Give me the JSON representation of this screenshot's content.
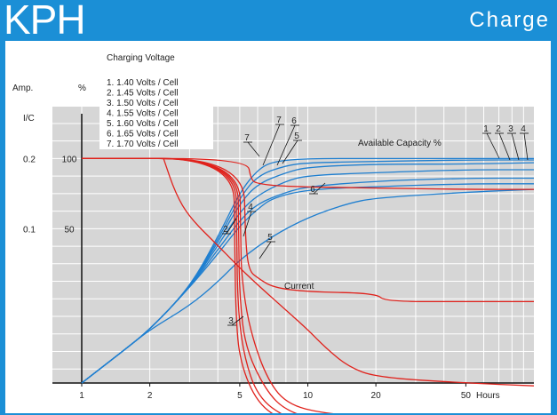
{
  "header": {
    "logo_text": "KPH",
    "title": "Charge"
  },
  "colors": {
    "banner": "#1b8fd6",
    "plot_bg": "#d6d6d6",
    "grid": "#ffffff",
    "capacity_curve": "#1f7fd0",
    "current_curve": "#e0211b"
  },
  "chart_data": {
    "type": "line",
    "title": "Charging Voltage",
    "x_axis": {
      "scale": "log",
      "range": [
        1,
        100
      ],
      "ticks": [
        {
          "value": 1,
          "label": "1"
        },
        {
          "value": 2,
          "label": "2"
        },
        {
          "value": 5,
          "label": "5"
        },
        {
          "value": 10,
          "label": "10"
        },
        {
          "value": 20,
          "label": "20"
        },
        {
          "value": 50,
          "label": "50"
        }
      ],
      "unit_label": "Hours"
    },
    "y_axis_left": {
      "label": "Amp.",
      "ticks": [
        {
          "value": 0.2,
          "label": "0.2"
        },
        {
          "value": 0.1,
          "label": "0.1"
        }
      ],
      "top_label": "I/C"
    },
    "y_axis_right": {
      "label": "%",
      "ticks": [
        {
          "value": 100,
          "label": "100"
        },
        {
          "value": 50,
          "label": "50"
        }
      ]
    },
    "y_range_percent": [
      -60,
      137
    ],
    "grid": true,
    "legend": {
      "placement": "top-left",
      "entries": [
        "1.  1.40  Volts / Cell",
        "2.  1.45  Volts / Cell",
        "3.  1.50  Volts / Cell",
        "4.  1.55  Volts / Cell",
        "5.  1.60  Volts / Cell",
        "6.  1.65  Volts / Cell",
        "7.  1.70  Volts / Cell"
      ]
    },
    "annotations": {
      "capacity": "Available Capacity %",
      "current": "Current"
    },
    "series": [
      {
        "name": "1",
        "kind": "capacity",
        "points": [
          [
            1,
            -60
          ],
          [
            1.5,
            -38
          ],
          [
            2,
            -22
          ],
          [
            3,
            8
          ],
          [
            4,
            32
          ],
          [
            5,
            52
          ],
          [
            6,
            64
          ],
          [
            7,
            72
          ],
          [
            10,
            78
          ],
          [
            20,
            80
          ],
          [
            50,
            82
          ],
          [
            100,
            82
          ]
        ]
      },
      {
        "name": "2",
        "kind": "capacity",
        "points": [
          [
            1,
            -60
          ],
          [
            1.5,
            -38
          ],
          [
            2,
            -22
          ],
          [
            3,
            8
          ],
          [
            4,
            35
          ],
          [
            5,
            56
          ],
          [
            6,
            68
          ],
          [
            8,
            76
          ],
          [
            10,
            80
          ],
          [
            20,
            84
          ],
          [
            50,
            86
          ],
          [
            100,
            86
          ]
        ]
      },
      {
        "name": "3",
        "kind": "capacity",
        "points": [
          [
            1,
            -60
          ],
          [
            1.5,
            -38
          ],
          [
            2,
            -22
          ],
          [
            3,
            8
          ],
          [
            4,
            38
          ],
          [
            5,
            62
          ],
          [
            6,
            74
          ],
          [
            8,
            84
          ],
          [
            10,
            88
          ],
          [
            20,
            90
          ],
          [
            50,
            92
          ],
          [
            100,
            92
          ]
        ]
      },
      {
        "name": "4",
        "kind": "capacity",
        "points": [
          [
            1,
            -60
          ],
          [
            1.5,
            -38
          ],
          [
            2,
            -22
          ],
          [
            3,
            8
          ],
          [
            4,
            40
          ],
          [
            5,
            68
          ],
          [
            6,
            82
          ],
          [
            8,
            90
          ],
          [
            10,
            94
          ],
          [
            20,
            96
          ],
          [
            50,
            96
          ],
          [
            100,
            97
          ]
        ]
      },
      {
        "name": "5",
        "kind": "capacity",
        "points": [
          [
            1,
            -60
          ],
          [
            1.5,
            -38
          ],
          [
            2,
            -22
          ],
          [
            3,
            8
          ],
          [
            4,
            42
          ],
          [
            5,
            72
          ],
          [
            6,
            88
          ],
          [
            8,
            95
          ],
          [
            10,
            97
          ],
          [
            20,
            98
          ],
          [
            50,
            99
          ],
          [
            100,
            99
          ]
        ]
      },
      {
        "name": "6",
        "kind": "capacity",
        "points": [
          [
            1,
            -60
          ],
          [
            1.5,
            -38
          ],
          [
            2,
            -22
          ],
          [
            3,
            -5
          ],
          [
            4,
            12
          ],
          [
            5,
            28
          ],
          [
            7,
            45
          ],
          [
            10,
            58
          ],
          [
            15,
            68
          ],
          [
            20,
            72
          ],
          [
            50,
            76
          ],
          [
            100,
            78
          ]
        ]
      },
      {
        "name": "7",
        "kind": "capacity",
        "points": [
          [
            1,
            -60
          ],
          [
            1.5,
            -38
          ],
          [
            2,
            -22
          ],
          [
            3,
            8
          ],
          [
            4,
            44
          ],
          [
            5,
            76
          ],
          [
            6,
            92
          ],
          [
            7,
            98
          ],
          [
            10,
            100
          ],
          [
            20,
            100
          ],
          [
            50,
            100
          ],
          [
            100,
            100
          ]
        ]
      },
      {
        "name": "1",
        "kind": "current",
        "points": [
          [
            1,
            100
          ],
          [
            4.7,
            100
          ],
          [
            4.75,
            40
          ],
          [
            4.8,
            -10
          ],
          [
            5,
            -45
          ],
          [
            6,
            -75
          ],
          [
            8,
            -88
          ],
          [
            12,
            -94
          ],
          [
            20,
            -96
          ],
          [
            50,
            -96
          ],
          [
            100,
            -96
          ]
        ]
      },
      {
        "name": "2",
        "kind": "current",
        "points": [
          [
            1,
            100
          ],
          [
            4.8,
            100
          ],
          [
            4.85,
            40
          ],
          [
            4.9,
            -5
          ],
          [
            5.2,
            -40
          ],
          [
            6,
            -70
          ],
          [
            8,
            -85
          ],
          [
            12,
            -92
          ],
          [
            20,
            -95
          ],
          [
            50,
            -95
          ],
          [
            100,
            -95
          ]
        ]
      },
      {
        "name": "3",
        "kind": "current",
        "points": [
          [
            1,
            100
          ],
          [
            4.9,
            100
          ],
          [
            4.95,
            40
          ],
          [
            5.0,
            0
          ],
          [
            5.3,
            -35
          ],
          [
            6.5,
            -65
          ],
          [
            8,
            -80
          ],
          [
            12,
            -88
          ],
          [
            20,
            -90
          ],
          [
            50,
            -90
          ],
          [
            100,
            -90
          ]
        ]
      },
      {
        "name": "4",
        "kind": "current",
        "points": [
          [
            1,
            100
          ],
          [
            5,
            100
          ],
          [
            5.05,
            40
          ],
          [
            5.1,
            15
          ],
          [
            5.5,
            -20
          ],
          [
            6.5,
            -55
          ],
          [
            8,
            -75
          ],
          [
            12,
            -82
          ],
          [
            20,
            -84
          ],
          [
            50,
            -84
          ],
          [
            100,
            -84
          ]
        ]
      },
      {
        "name": "5",
        "kind": "current",
        "points": [
          [
            1,
            100
          ],
          [
            5.2,
            100
          ],
          [
            5.3,
            40
          ],
          [
            5.5,
            20
          ],
          [
            6,
            15
          ],
          [
            7,
            8
          ],
          [
            10,
            5
          ],
          [
            20,
            4
          ],
          [
            22,
            -2
          ],
          [
            50,
            -2
          ],
          [
            100,
            -2
          ]
        ]
      },
      {
        "name": "6",
        "kind": "current",
        "points": [
          [
            1,
            100
          ],
          [
            5.4,
            100
          ],
          [
            5.6,
            85
          ],
          [
            6,
            82
          ],
          [
            8,
            80
          ],
          [
            20,
            79
          ],
          [
            50,
            78
          ],
          [
            100,
            78
          ]
        ]
      },
      {
        "name": "7",
        "kind": "current",
        "points": [
          [
            2.3,
            100
          ],
          [
            2.6,
            75
          ],
          [
            3,
            58
          ],
          [
            4,
            38
          ],
          [
            5,
            22
          ],
          [
            6,
            10
          ],
          [
            8,
            -8
          ],
          [
            10,
            -22
          ],
          [
            12,
            -35
          ],
          [
            15,
            -48
          ],
          [
            20,
            -56
          ],
          [
            50,
            -60
          ],
          [
            100,
            -62
          ]
        ]
      }
    ],
    "curve_labels": [
      {
        "text": "1",
        "kind": "capacity"
      },
      {
        "text": "2",
        "kind": "capacity"
      },
      {
        "text": "3",
        "kind": "capacity"
      },
      {
        "text": "4",
        "kind": "capacity"
      },
      {
        "text": "5",
        "kind": "capacity"
      },
      {
        "text": "6",
        "kind": "capacity"
      },
      {
        "text": "7",
        "kind": "capacity"
      },
      {
        "text": "2",
        "kind": "current"
      },
      {
        "text": "3",
        "kind": "current"
      },
      {
        "text": "4",
        "kind": "current"
      },
      {
        "text": "5",
        "kind": "current"
      },
      {
        "text": "6",
        "kind": "current"
      },
      {
        "text": "7",
        "kind": "current"
      }
    ]
  }
}
